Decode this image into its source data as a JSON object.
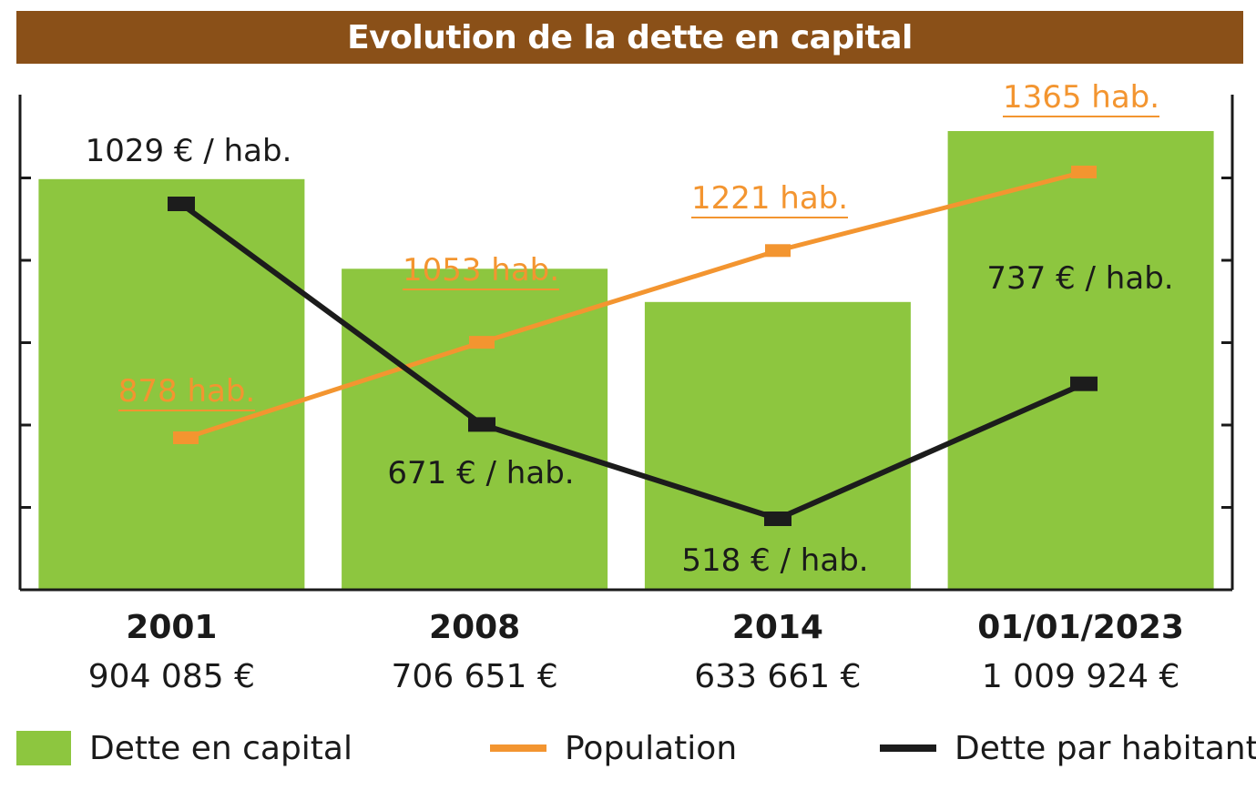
{
  "chart_data": {
    "type": "bar",
    "title": "Evolution de la dette en capital",
    "categories": [
      "2001",
      "2008",
      "2014",
      "01/01/2023"
    ],
    "bar_series": {
      "name": "Dette en capital",
      "values": [
        904085,
        706651,
        633661,
        1009924
      ],
      "labels": [
        "904 085 €",
        "706 651 €",
        "633 661 €",
        "1 009 924 €"
      ],
      "color": "#8dc63f"
    },
    "line_series": [
      {
        "name": "Population",
        "values": [
          878,
          1053,
          1221,
          1365
        ],
        "labels": [
          "878 hab.",
          "1053 hab.",
          "1221 hab.",
          "1365 hab."
        ],
        "color": "#f39530"
      },
      {
        "name": "Dette par habitant",
        "values": [
          1029,
          671,
          518,
          737
        ],
        "labels": [
          "1029 € / hab.",
          "671 € / hab.",
          "518 € / hab.",
          "737 € / hab."
        ],
        "color": "#1c1c1c"
      }
    ],
    "legend_position": "bottom",
    "grid": false
  },
  "colors": {
    "title_bar": "#8a5018",
    "title_text": "#ffffff",
    "axis": "#1a1a1a"
  }
}
